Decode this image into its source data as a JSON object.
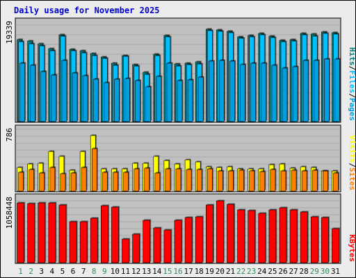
{
  "title": "Daily usage for November 2025",
  "colors": {
    "background": "#ECECEC",
    "panel": "#C0C0C0",
    "grid": "#A9A9A9",
    "title": "#0000CC",
    "hits": "#008080",
    "files": "#00C0FF",
    "pages": "#00A0E0",
    "visits": "#FFFF00",
    "sites": "#FF8000",
    "kbytes": "#FF0000",
    "weekday_label": "#000000",
    "weekend_label": "#2E8B57"
  },
  "right_labels": {
    "top": [
      "Hits",
      "Files",
      "Pages"
    ],
    "middle": [
      "Visits",
      "Sites"
    ],
    "bottom": [
      "KBytes"
    ],
    "separator": "/"
  },
  "chart_data": {
    "type": "bar",
    "categories": [
      "1",
      "2",
      "3",
      "4",
      "5",
      "6",
      "7",
      "8",
      "9",
      "10",
      "11",
      "12",
      "13",
      "14",
      "15",
      "16",
      "17",
      "18",
      "19",
      "20",
      "21",
      "22",
      "23",
      "24",
      "25",
      "26",
      "27",
      "28",
      "29",
      "30",
      "31"
    ],
    "weekend_days": [
      "1",
      "2",
      "8",
      "9",
      "15",
      "16",
      "22",
      "23",
      "29",
      "30"
    ],
    "panels": [
      {
        "name": "hits-files-pages",
        "y_max_label": "19339",
        "ylim": [
          0,
          19339
        ],
        "series": [
          {
            "name": "Hits",
            "values": [
              16100,
              15850,
              15200,
              14250,
              17050,
              14100,
              13900,
              13300,
              12700,
              11400,
              13000,
              11100,
              9650,
              13200,
              16900,
              11250,
              11400,
              11650,
              18100,
              17950,
              17700,
              16650,
              16900,
              17250,
              16800,
              15950,
              16100,
              17300,
              17100,
              17550,
              17400
            ]
          },
          {
            "name": "Files",
            "values": [
              15600,
              15300,
              14900,
              13900,
              16750,
              13950,
              13550,
              12900,
              12350,
              11000,
              12800,
              10900,
              9250,
              12900,
              16650,
              10950,
              11150,
              11300,
              17800,
              17650,
              17400,
              16350,
              16650,
              17000,
              16500,
              15700,
              15850,
              17000,
              16800,
              17250,
              17150
            ]
          },
          {
            "name": "Pages",
            "values": [
              11500,
              11000,
              9800,
              9100,
              12000,
              9500,
              9000,
              8300,
              7600,
              8300,
              8500,
              8100,
              6800,
              8800,
              11500,
              8000,
              8200,
              8700,
              11800,
              12000,
              11800,
              11200,
              11500,
              11500,
              11000,
              10500,
              10800,
              12000,
              12000,
              12300,
              12200
            ]
          }
        ]
      },
      {
        "name": "visits-sites",
        "y_max_label": "786",
        "ylim": [
          0,
          786
        ],
        "series": [
          {
            "name": "Visits",
            "values": [
              300,
              345,
              361,
              505,
              445,
              270,
              510,
              717,
              285,
              285,
              285,
              361,
              360,
              450,
              397,
              345,
              405,
              375,
              315,
              300,
              315,
              285,
              285,
              285,
              339,
              345,
              299,
              315,
              300,
              257,
              260
            ]
          },
          {
            "name": "Sites",
            "values": [
              240,
              279,
              232,
              306,
              221,
              234,
              307,
              542,
              240,
              237,
              243,
              283,
              293,
              231,
              290,
              289,
              275,
              280,
              285,
              260,
              262,
              264,
              257,
              250,
              276,
              255,
              270,
              261,
              271,
              260,
              231
            ]
          }
        ]
      },
      {
        "name": "kbytes",
        "y_max_label": "1058448",
        "ylim": [
          0,
          1058448
        ],
        "series": [
          {
            "name": "KBytes",
            "values": [
              990000,
              980000,
              995000,
              990000,
              955000,
              680000,
              680000,
              735000,
              940000,
              920000,
              395000,
              470000,
              700000,
              570000,
              540000,
              705000,
              750000,
              760000,
              950000,
              1020000,
              970000,
              880000,
              860000,
              820000,
              870000,
              910000,
              880000,
              840000,
              760000,
              750000,
              560000
            ]
          }
        ]
      }
    ]
  }
}
